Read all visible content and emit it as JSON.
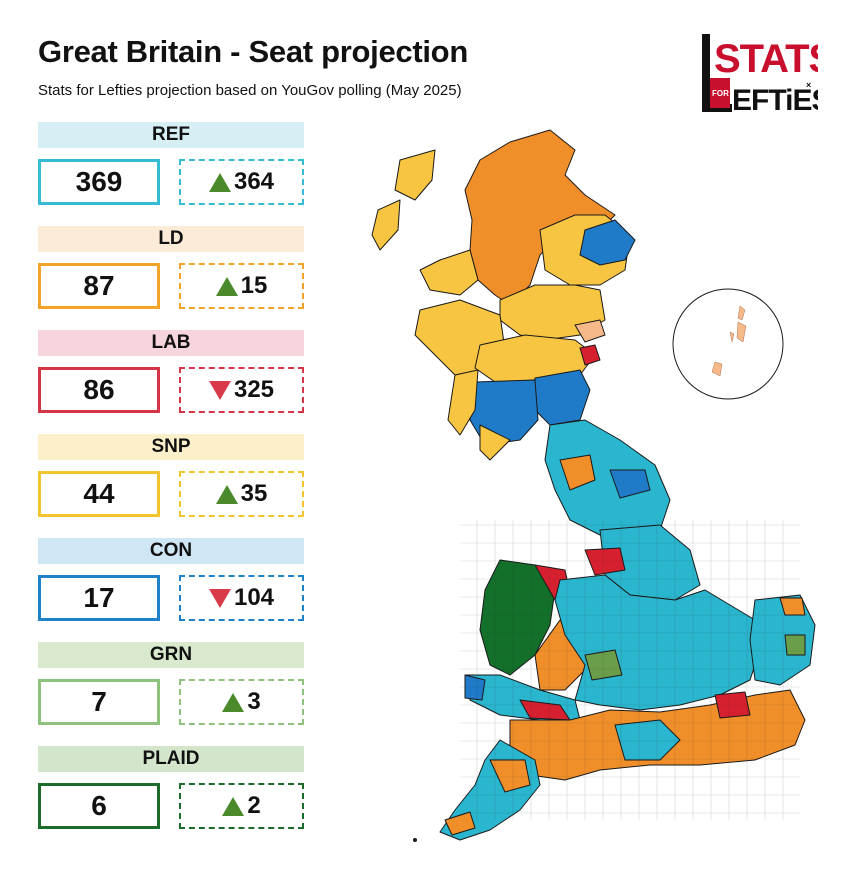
{
  "header": {
    "title": "Great Britain - Seat projection",
    "subtitle": "Stats for Lefties projection based on YouGov polling (May 2025)"
  },
  "logo": {
    "line1": "STATS",
    "line2": "LEFTIES",
    "for": "FOR",
    "accent": "#c8102e"
  },
  "parties": [
    {
      "name": "REF",
      "seats": "369",
      "change": "364",
      "direction": "up",
      "color": "#35bcd2",
      "bg": "#d6eff5"
    },
    {
      "name": "LD",
      "seats": "87",
      "change": "15",
      "direction": "up",
      "color": "#f3a428",
      "bg": "#fcebd6"
    },
    {
      "name": "LAB",
      "seats": "86",
      "change": "325",
      "direction": "down",
      "color": "#d63447",
      "bg": "#f6d5dc"
    },
    {
      "name": "SNP",
      "seats": "44",
      "change": "35",
      "direction": "up",
      "color": "#f3c52c",
      "bg": "#fcf0cb"
    },
    {
      "name": "CON",
      "seats": "17",
      "change": "104",
      "direction": "down",
      "color": "#1d82c7",
      "bg": "#cfe6f5"
    },
    {
      "name": "GRN",
      "seats": "7",
      "change": "3",
      "direction": "up",
      "color": "#8ec27d",
      "bg": "#d8e9cd"
    },
    {
      "name": "PLAID",
      "seats": "6",
      "change": "2",
      "direction": "up",
      "color": "#1d6b2a",
      "bg": "#d3e6cc"
    }
  ],
  "map": {
    "colors": {
      "ref": "#2bb6cf",
      "ld": "#f08f2a",
      "lab": "#d7202f",
      "snp": "#f7c542",
      "con": "#1f7ac8",
      "grn": "#6b9e4a",
      "plaid": "#13702b",
      "orkney": "#f5b98a"
    }
  }
}
